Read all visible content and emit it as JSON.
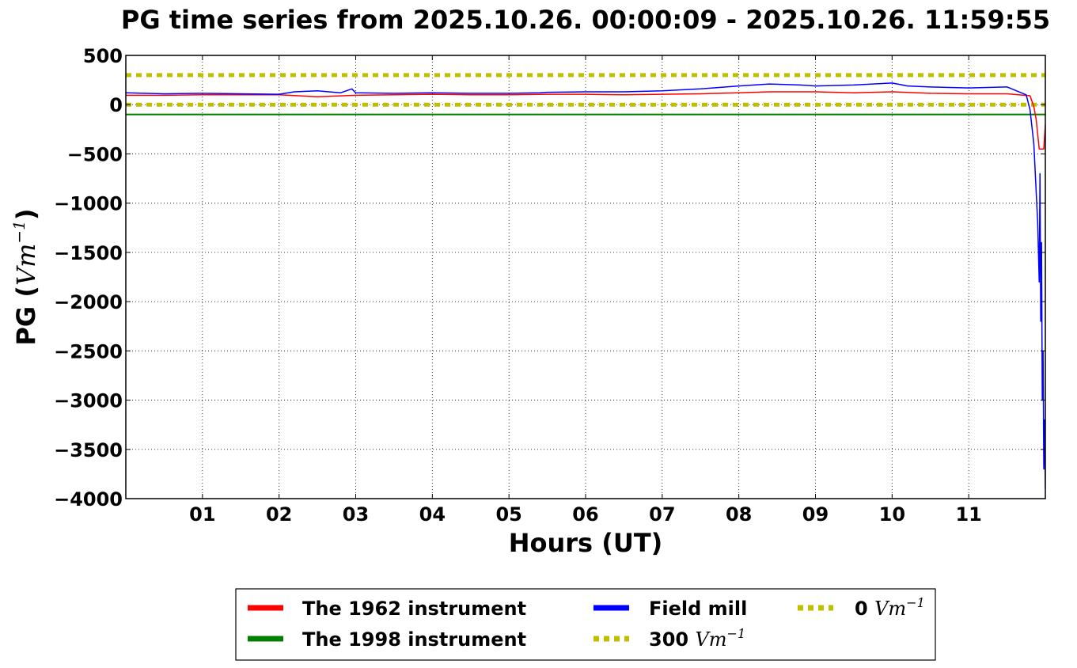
{
  "chart_data": {
    "type": "line",
    "title": "PG time series from 2025.10.26. 00:00:09 - 2025.10.26. 11:59:55",
    "xlabel": "Hours (UT)",
    "ylabel_prefix": "PG (",
    "ylabel_unit": "Vm",
    "ylabel_exp": "−1",
    "ylabel_suffix": ")",
    "xlim": [
      0,
      12
    ],
    "ylim": [
      -4000,
      500
    ],
    "xticks": [
      1,
      2,
      3,
      4,
      5,
      6,
      7,
      8,
      9,
      10,
      11
    ],
    "xtick_labels": [
      "01",
      "02",
      "03",
      "04",
      "05",
      "06",
      "07",
      "08",
      "09",
      "10",
      "11"
    ],
    "yticks": [
      500,
      0,
      -500,
      -1000,
      -1500,
      -2000,
      -2500,
      -3000,
      -3500,
      -4000
    ],
    "ytick_labels": [
      "500",
      "0",
      "−500",
      "−1000",
      "−1500",
      "−2000",
      "−2500",
      "−3000",
      "−3500",
      "−4000"
    ],
    "grid": true,
    "legend_position": "bottom",
    "series": [
      {
        "name": "The 1962 instrument",
        "color": "#ff0000",
        "style": "solid",
        "x": [
          0,
          0.5,
          1,
          1.5,
          2,
          2.5,
          3,
          3.5,
          4,
          4.5,
          5,
          5.5,
          6,
          6.5,
          7,
          7.5,
          8,
          8.4,
          9,
          9.5,
          10,
          10.5,
          11,
          11.5,
          11.8,
          11.85,
          11.88,
          11.9,
          11.92,
          11.94,
          11.96,
          11.98,
          12
        ],
        "y": [
          95,
          95,
          100,
          100,
          100,
          80,
          95,
          100,
          105,
          100,
          100,
          105,
          105,
          100,
          105,
          110,
          120,
          130,
          130,
          120,
          130,
          115,
          110,
          110,
          90,
          -20,
          -150,
          -300,
          -450,
          -450,
          -450,
          -450,
          -200
        ]
      },
      {
        "name": "The 1998 instrument",
        "color": "#008000",
        "style": "solid",
        "x": [
          0,
          12
        ],
        "y": [
          -100,
          -100
        ]
      },
      {
        "name": "Field mill",
        "color": "#0000ff",
        "style": "solid",
        "x": [
          0,
          0.5,
          1,
          1.5,
          2,
          2.2,
          2.5,
          2.8,
          2.95,
          3,
          3.5,
          4,
          4.5,
          5,
          5.4,
          5.5,
          6,
          6.5,
          7,
          7.5,
          8,
          8.4,
          8.8,
          9,
          9.5,
          10,
          10.2,
          10.5,
          11,
          11.5,
          11.75,
          11.8,
          11.85,
          11.9,
          11.92,
          11.93,
          11.94,
          11.95,
          11.96,
          11.97,
          11.98,
          11.99,
          12
        ],
        "y": [
          120,
          110,
          115,
          110,
          105,
          130,
          140,
          120,
          160,
          120,
          115,
          120,
          115,
          115,
          120,
          125,
          130,
          130,
          140,
          160,
          190,
          210,
          200,
          190,
          200,
          220,
          190,
          180,
          170,
          180,
          100,
          -50,
          -400,
          -1200,
          -1800,
          -700,
          -2200,
          -1400,
          -3000,
          -2500,
          -3700,
          -3200,
          -3900
        ]
      },
      {
        "name": "300 Vm⁻¹",
        "name_prefix": "300 ",
        "name_unit": "Vm",
        "name_exp": "−1",
        "color": "#bfbf00",
        "style": "dotted",
        "x": [
          0,
          12
        ],
        "y": [
          300,
          300
        ]
      },
      {
        "name": "0 Vm⁻¹",
        "name_prefix": "0 ",
        "name_unit": "Vm",
        "name_exp": "−1",
        "color": "#bfbf00",
        "style": "dotted",
        "x": [
          0,
          12
        ],
        "y": [
          0,
          0
        ]
      }
    ]
  }
}
